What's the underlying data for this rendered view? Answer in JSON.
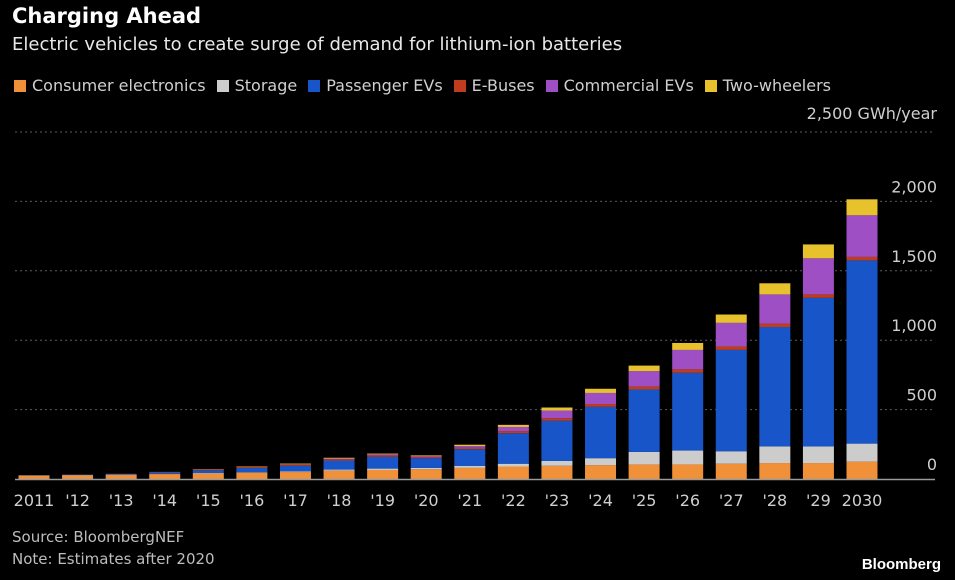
{
  "header": {
    "title": "Charging Ahead",
    "subtitle": "Electric vehicles to create surge of demand for lithium-ion batteries"
  },
  "unit_label": "2,500 GWh/year",
  "footer": {
    "source": "Source: BloombergNEF",
    "note": "Note: Estimates after 2020",
    "brand": "Bloomberg"
  },
  "chart_data": {
    "type": "bar",
    "stacked": true,
    "categories": [
      "2011",
      "'12",
      "'13",
      "'14",
      "'15",
      "'16",
      "'17",
      "'18",
      "'19",
      "'20",
      "'21",
      "'22",
      "'23",
      "'24",
      "'25",
      "'26",
      "'27",
      "'28",
      "'29",
      "2030"
    ],
    "series": [
      {
        "name": "Consumer electronics",
        "color": "#f0913a",
        "values": [
          25,
          28,
          30,
          35,
          40,
          45,
          50,
          60,
          65,
          70,
          80,
          90,
          95,
          100,
          105,
          105,
          110,
          115,
          115,
          125
        ]
      },
      {
        "name": "Storage",
        "color": "#cccccc",
        "values": [
          1,
          1,
          2,
          2,
          3,
          4,
          5,
          8,
          10,
          10,
          15,
          20,
          35,
          50,
          90,
          100,
          90,
          120,
          120,
          130
        ]
      },
      {
        "name": "Passenger EVs",
        "color": "#1855c8",
        "values": [
          2,
          3,
          5,
          10,
          20,
          30,
          40,
          65,
          85,
          70,
          120,
          220,
          290,
          370,
          450,
          560,
          730,
          860,
          1070,
          1320
        ]
      },
      {
        "name": "E-Buses",
        "color": "#c03c1e",
        "values": [
          0,
          0,
          1,
          2,
          5,
          7,
          8,
          10,
          10,
          8,
          10,
          15,
          18,
          20,
          22,
          25,
          25,
          25,
          25,
          25
        ]
      },
      {
        "name": "Commercial EVs",
        "color": "#9d4fc3",
        "values": [
          0,
          0,
          0,
          1,
          1,
          2,
          3,
          5,
          8,
          7,
          12,
          30,
          55,
          80,
          110,
          140,
          170,
          210,
          260,
          300
        ]
      },
      {
        "name": "Two-wheelers",
        "color": "#e8c22d",
        "values": [
          0,
          0,
          0,
          1,
          2,
          3,
          5,
          5,
          5,
          5,
          10,
          15,
          22,
          30,
          40,
          50,
          60,
          80,
          100,
          115
        ]
      }
    ],
    "y_ticks": [
      "0",
      "500",
      "1,000",
      "1,500",
      "2,000"
    ],
    "ylim": [
      0,
      2500
    ],
    "grid": true,
    "legend": "top"
  }
}
